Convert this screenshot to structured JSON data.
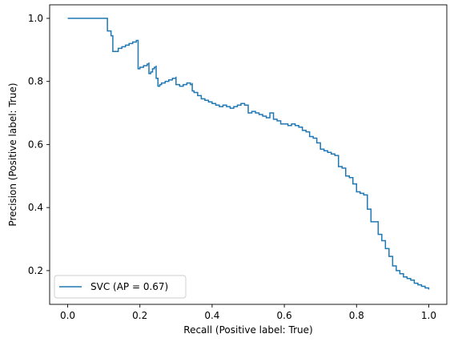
{
  "chart_data": {
    "type": "line",
    "step": "post",
    "xlabel": "Recall (Positive label: True)",
    "ylabel": "Precision (Positive label: True)",
    "xlim": [
      -0.05,
      1.05
    ],
    "ylim": [
      0.093,
      1.043
    ],
    "xticks": [
      0.0,
      0.2,
      0.4,
      0.6,
      0.8,
      1.0
    ],
    "xtick_labels": [
      "0.0",
      "0.2",
      "0.4",
      "0.6",
      "0.8",
      "1.0"
    ],
    "yticks": [
      0.2,
      0.4,
      0.6,
      0.8,
      1.0
    ],
    "ytick_labels": [
      "0.2",
      "0.4",
      "0.6",
      "0.8",
      "1.0"
    ],
    "grid": false,
    "legend": {
      "location": "lower-left",
      "entries": [
        "SVC (AP = 0.67)"
      ]
    },
    "series": [
      {
        "name": "SVC (AP = 0.67)",
        "color": "#1f77b4",
        "x": [
          0.0,
          0.11,
          0.11,
          0.12,
          0.12,
          0.125,
          0.125,
          0.14,
          0.15,
          0.16,
          0.17,
          0.18,
          0.19,
          0.195,
          0.195,
          0.2,
          0.21,
          0.22,
          0.225,
          0.225,
          0.23,
          0.235,
          0.24,
          0.245,
          0.245,
          0.25,
          0.255,
          0.26,
          0.27,
          0.28,
          0.29,
          0.3,
          0.3,
          0.31,
          0.32,
          0.33,
          0.34,
          0.345,
          0.345,
          0.35,
          0.36,
          0.37,
          0.38,
          0.39,
          0.4,
          0.41,
          0.42,
          0.43,
          0.44,
          0.45,
          0.46,
          0.47,
          0.48,
          0.49,
          0.5,
          0.51,
          0.52,
          0.53,
          0.54,
          0.55,
          0.56,
          0.57,
          0.58,
          0.59,
          0.6,
          0.61,
          0.62,
          0.63,
          0.64,
          0.65,
          0.66,
          0.67,
          0.68,
          0.69,
          0.7,
          0.71,
          0.72,
          0.73,
          0.74,
          0.75,
          0.76,
          0.77,
          0.78,
          0.79,
          0.8,
          0.81,
          0.82,
          0.83,
          0.84,
          0.85,
          0.86,
          0.87,
          0.88,
          0.89,
          0.9,
          0.91,
          0.92,
          0.93,
          0.94,
          0.95,
          0.96,
          0.97,
          0.98,
          0.99,
          1.0
        ],
        "y": [
          1.0,
          1.0,
          0.96,
          0.96,
          0.945,
          0.945,
          0.895,
          0.905,
          0.91,
          0.915,
          0.92,
          0.925,
          0.93,
          0.93,
          0.84,
          0.845,
          0.85,
          0.855,
          0.86,
          0.825,
          0.83,
          0.84,
          0.845,
          0.85,
          0.81,
          0.785,
          0.79,
          0.795,
          0.8,
          0.805,
          0.81,
          0.815,
          0.79,
          0.785,
          0.79,
          0.795,
          0.79,
          0.795,
          0.77,
          0.765,
          0.755,
          0.745,
          0.74,
          0.735,
          0.73,
          0.725,
          0.72,
          0.725,
          0.72,
          0.715,
          0.72,
          0.725,
          0.73,
          0.725,
          0.7,
          0.705,
          0.7,
          0.695,
          0.69,
          0.685,
          0.7,
          0.68,
          0.675,
          0.665,
          0.665,
          0.66,
          0.665,
          0.66,
          0.655,
          0.645,
          0.64,
          0.625,
          0.62,
          0.605,
          0.585,
          0.58,
          0.575,
          0.57,
          0.565,
          0.53,
          0.525,
          0.5,
          0.495,
          0.475,
          0.45,
          0.445,
          0.44,
          0.395,
          0.355,
          0.355,
          0.315,
          0.295,
          0.27,
          0.245,
          0.215,
          0.2,
          0.19,
          0.18,
          0.175,
          0.17,
          0.16,
          0.155,
          0.15,
          0.145,
          0.14
        ]
      }
    ]
  }
}
